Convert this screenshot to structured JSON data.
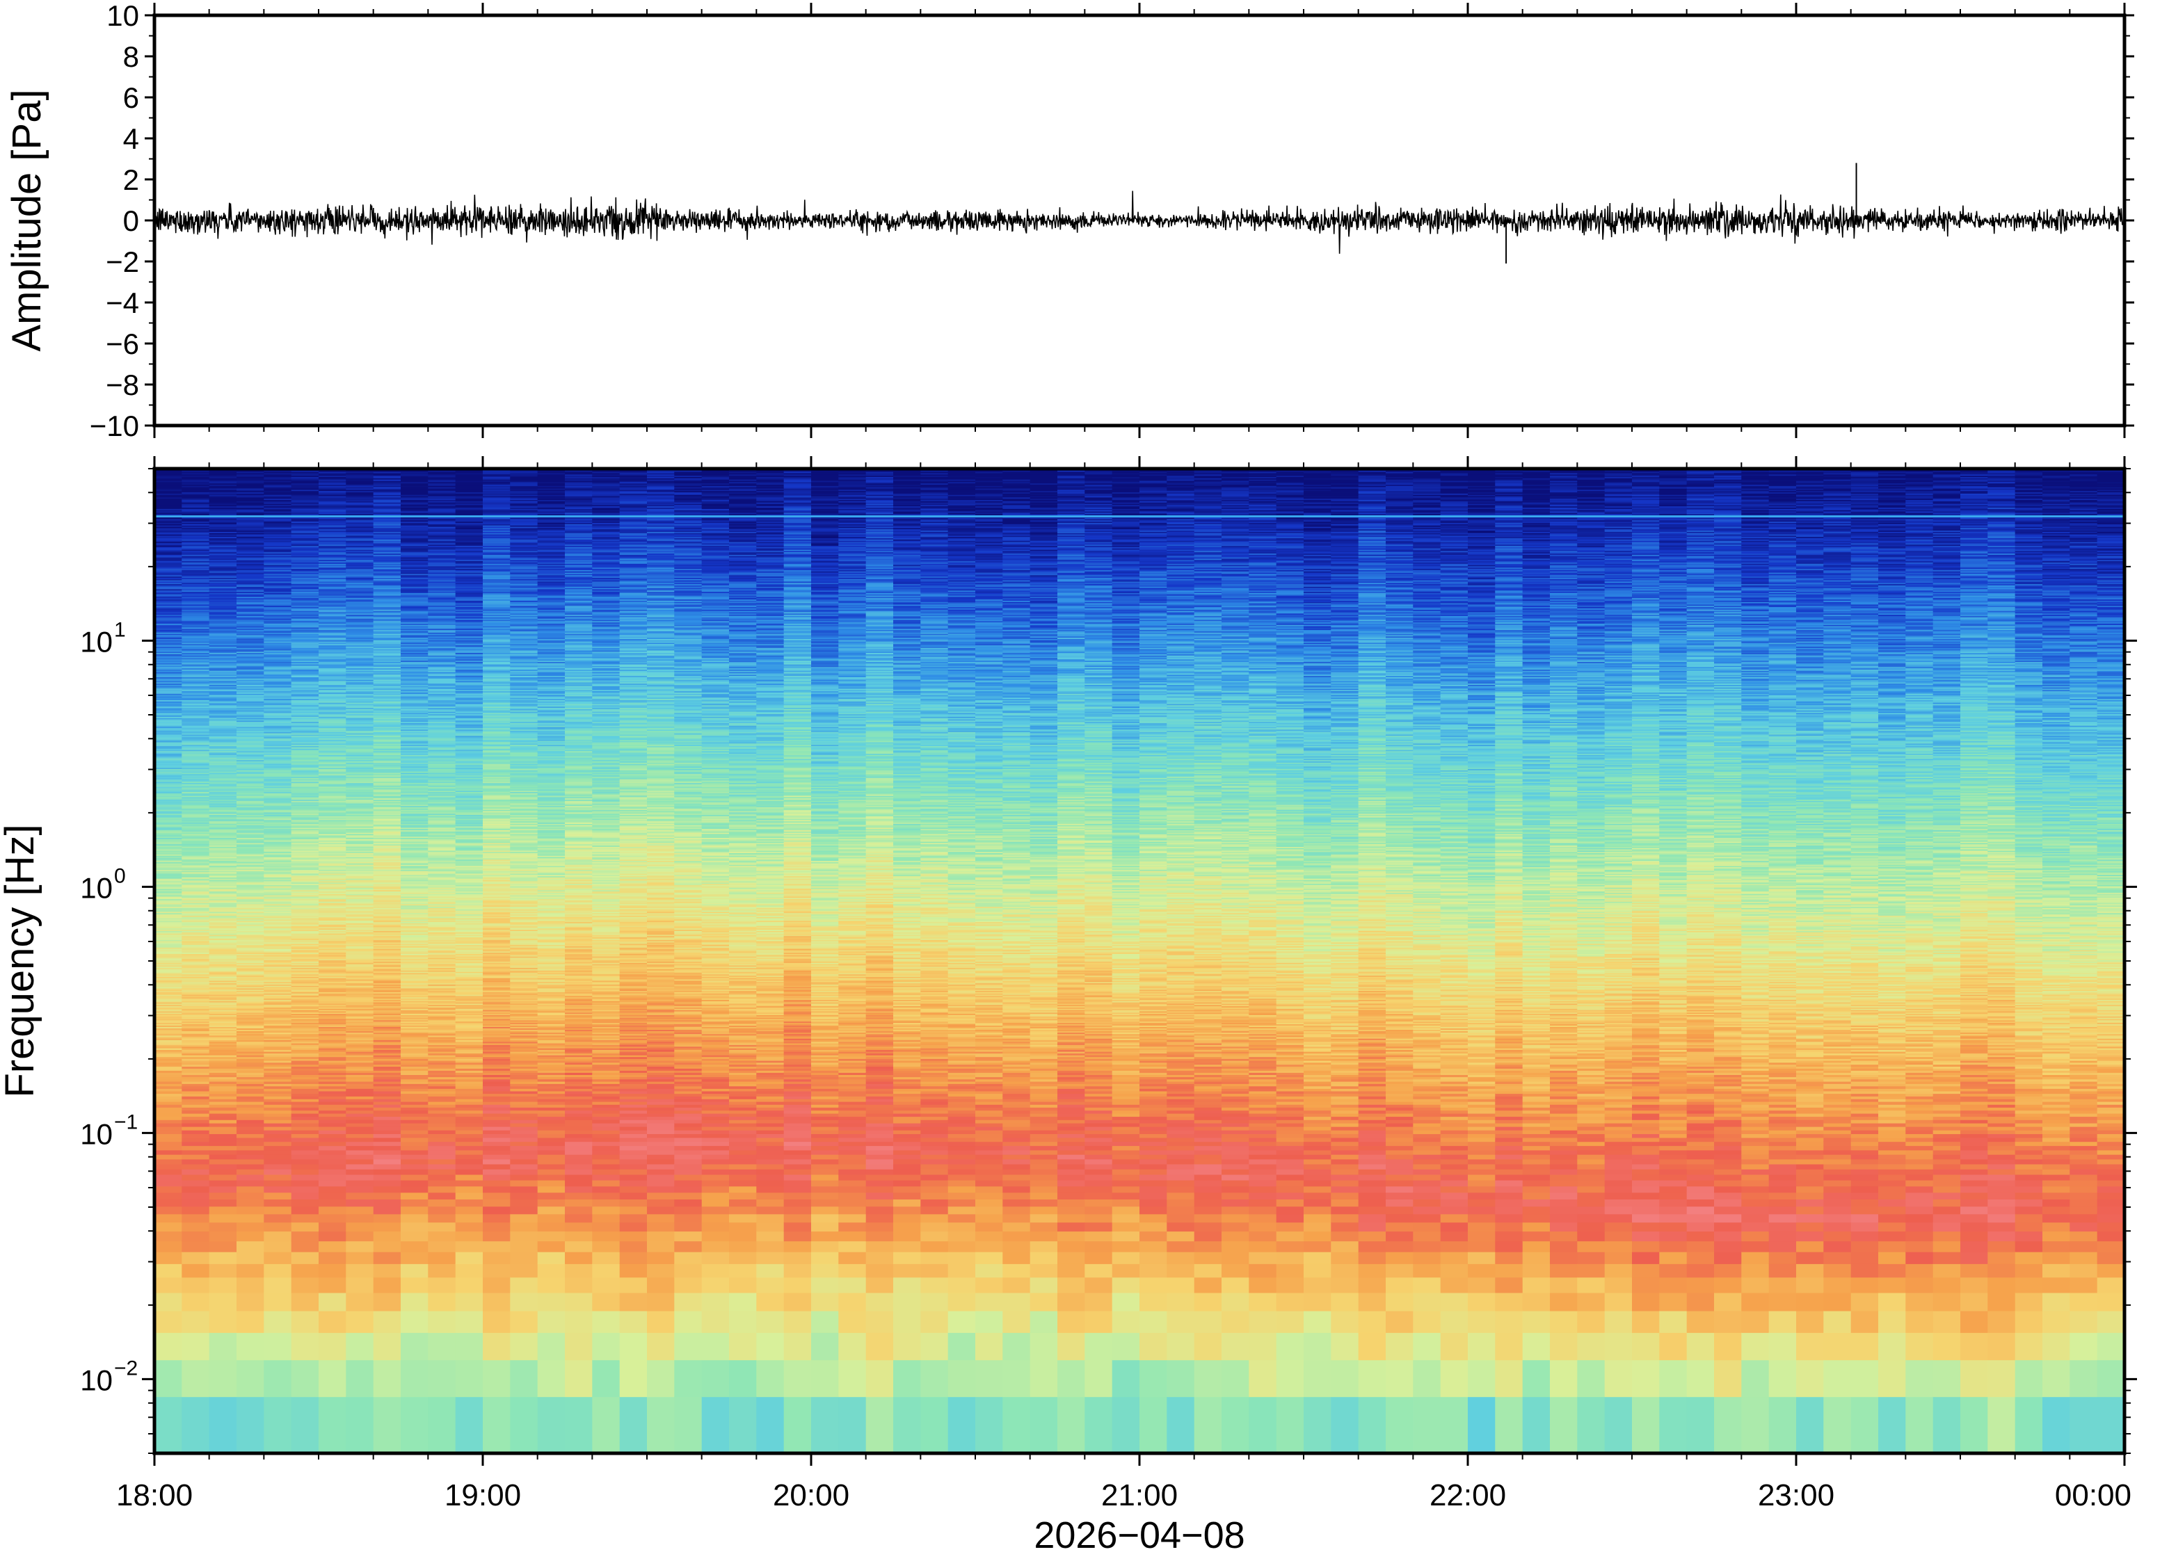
{
  "chart_data": [
    {
      "type": "line",
      "ylabel": "Amplitude [Pa]",
      "ylim": [
        -10,
        10
      ],
      "yticks": [
        "10",
        "8",
        "6",
        "4",
        "2",
        "0",
        "−2",
        "−4",
        "−6",
        "−8",
        "−10"
      ],
      "xlim": [
        "2026-04-08T18:00",
        "2026-04-09T00:00"
      ],
      "grid": false,
      "line_color": "#000000",
      "series_summary": {
        "baseline": 0,
        "typical_range": [
          -0.8,
          0.8
        ],
        "peak_max": 2.8,
        "peak_max_time": "23:11",
        "peak_min": -2.1,
        "peak_min_time": "22:07"
      }
    },
    {
      "type": "heatmap",
      "ylabel": "Frequency [Hz]",
      "yscale": "log",
      "ylim": [
        0.005,
        50
      ],
      "yticks": [
        {
          "base": "10",
          "exp": "1"
        },
        {
          "base": "10",
          "exp": "0"
        },
        {
          "base": "10",
          "exp": "−1"
        },
        {
          "base": "10",
          "exp": "−2"
        }
      ],
      "xlabel": "2026−04−08",
      "xticks": [
        "18:00",
        "19:00",
        "20:00",
        "21:00",
        "22:00",
        "23:00",
        "00:00"
      ],
      "colormap": [
        "#0a0f7a",
        "#1537c8",
        "#2f8ee6",
        "#5fcfe0",
        "#8ee6b6",
        "#d8f09a",
        "#f6d36e",
        "#f6a24c",
        "#ee5f4f",
        "#f37f7f"
      ],
      "tonal_line_hz": 32,
      "grid": false
    }
  ]
}
